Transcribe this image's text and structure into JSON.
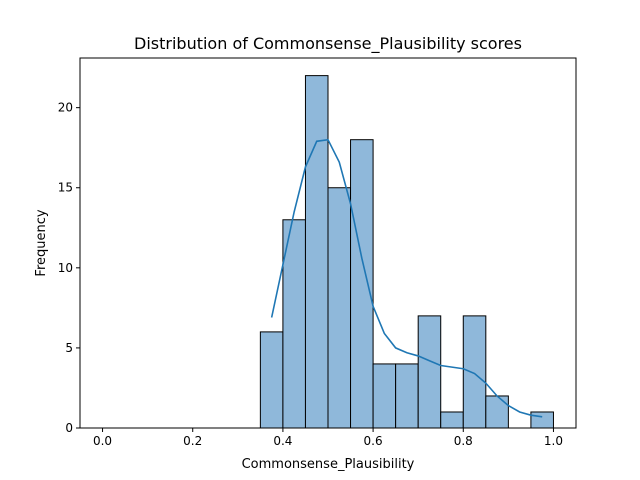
{
  "chart_data": {
    "type": "bar",
    "title": "Distribution of Commonsense_Plausibility scores",
    "xlabel": "Commonsense_Plausibility",
    "ylabel": "Frequency",
    "xlim": [
      -0.05,
      1.05
    ],
    "ylim": [
      0,
      23.1
    ],
    "xticks": [
      0.0,
      0.2,
      0.4,
      0.6,
      0.8,
      1.0
    ],
    "xtick_labels": [
      "0.0",
      "0.2",
      "0.4",
      "0.6",
      "0.8",
      "1.0"
    ],
    "yticks": [
      0,
      5,
      10,
      15,
      20
    ],
    "ytick_labels": [
      "0",
      "5",
      "10",
      "15",
      "20"
    ],
    "grid": false,
    "bins": [
      {
        "x0": 0.35,
        "x1": 0.4,
        "count": 6
      },
      {
        "x0": 0.4,
        "x1": 0.45,
        "count": 13
      },
      {
        "x0": 0.45,
        "x1": 0.5,
        "count": 22
      },
      {
        "x0": 0.5,
        "x1": 0.55,
        "count": 15
      },
      {
        "x0": 0.55,
        "x1": 0.6,
        "count": 18
      },
      {
        "x0": 0.6,
        "x1": 0.65,
        "count": 4
      },
      {
        "x0": 0.65,
        "x1": 0.7,
        "count": 4
      },
      {
        "x0": 0.7,
        "x1": 0.75,
        "count": 7
      },
      {
        "x0": 0.75,
        "x1": 0.8,
        "count": 1
      },
      {
        "x0": 0.8,
        "x1": 0.85,
        "count": 7
      },
      {
        "x0": 0.85,
        "x1": 0.9,
        "count": 2
      },
      {
        "x0": 0.9,
        "x1": 0.95,
        "count": 0
      },
      {
        "x0": 0.95,
        "x1": 1.0,
        "count": 1
      }
    ],
    "kde": {
      "x": [
        0.375,
        0.4,
        0.425,
        0.45,
        0.475,
        0.5,
        0.525,
        0.55,
        0.575,
        0.6,
        0.625,
        0.65,
        0.675,
        0.7,
        0.725,
        0.75,
        0.775,
        0.8,
        0.825,
        0.85,
        0.875,
        0.9,
        0.925,
        0.95,
        0.975
      ],
      "y": [
        6.9,
        10.2,
        13.5,
        16.3,
        17.9,
        18.0,
        16.6,
        14.0,
        10.6,
        7.6,
        5.9,
        5.0,
        4.7,
        4.5,
        4.2,
        3.9,
        3.8,
        3.7,
        3.4,
        2.8,
        2.0,
        1.4,
        1.0,
        0.8,
        0.7
      ]
    },
    "colors": {
      "bar_fill": "#8fb8da",
      "bar_edge": "#000000",
      "kde_line": "#1f77b4",
      "axes": "#000000"
    }
  }
}
